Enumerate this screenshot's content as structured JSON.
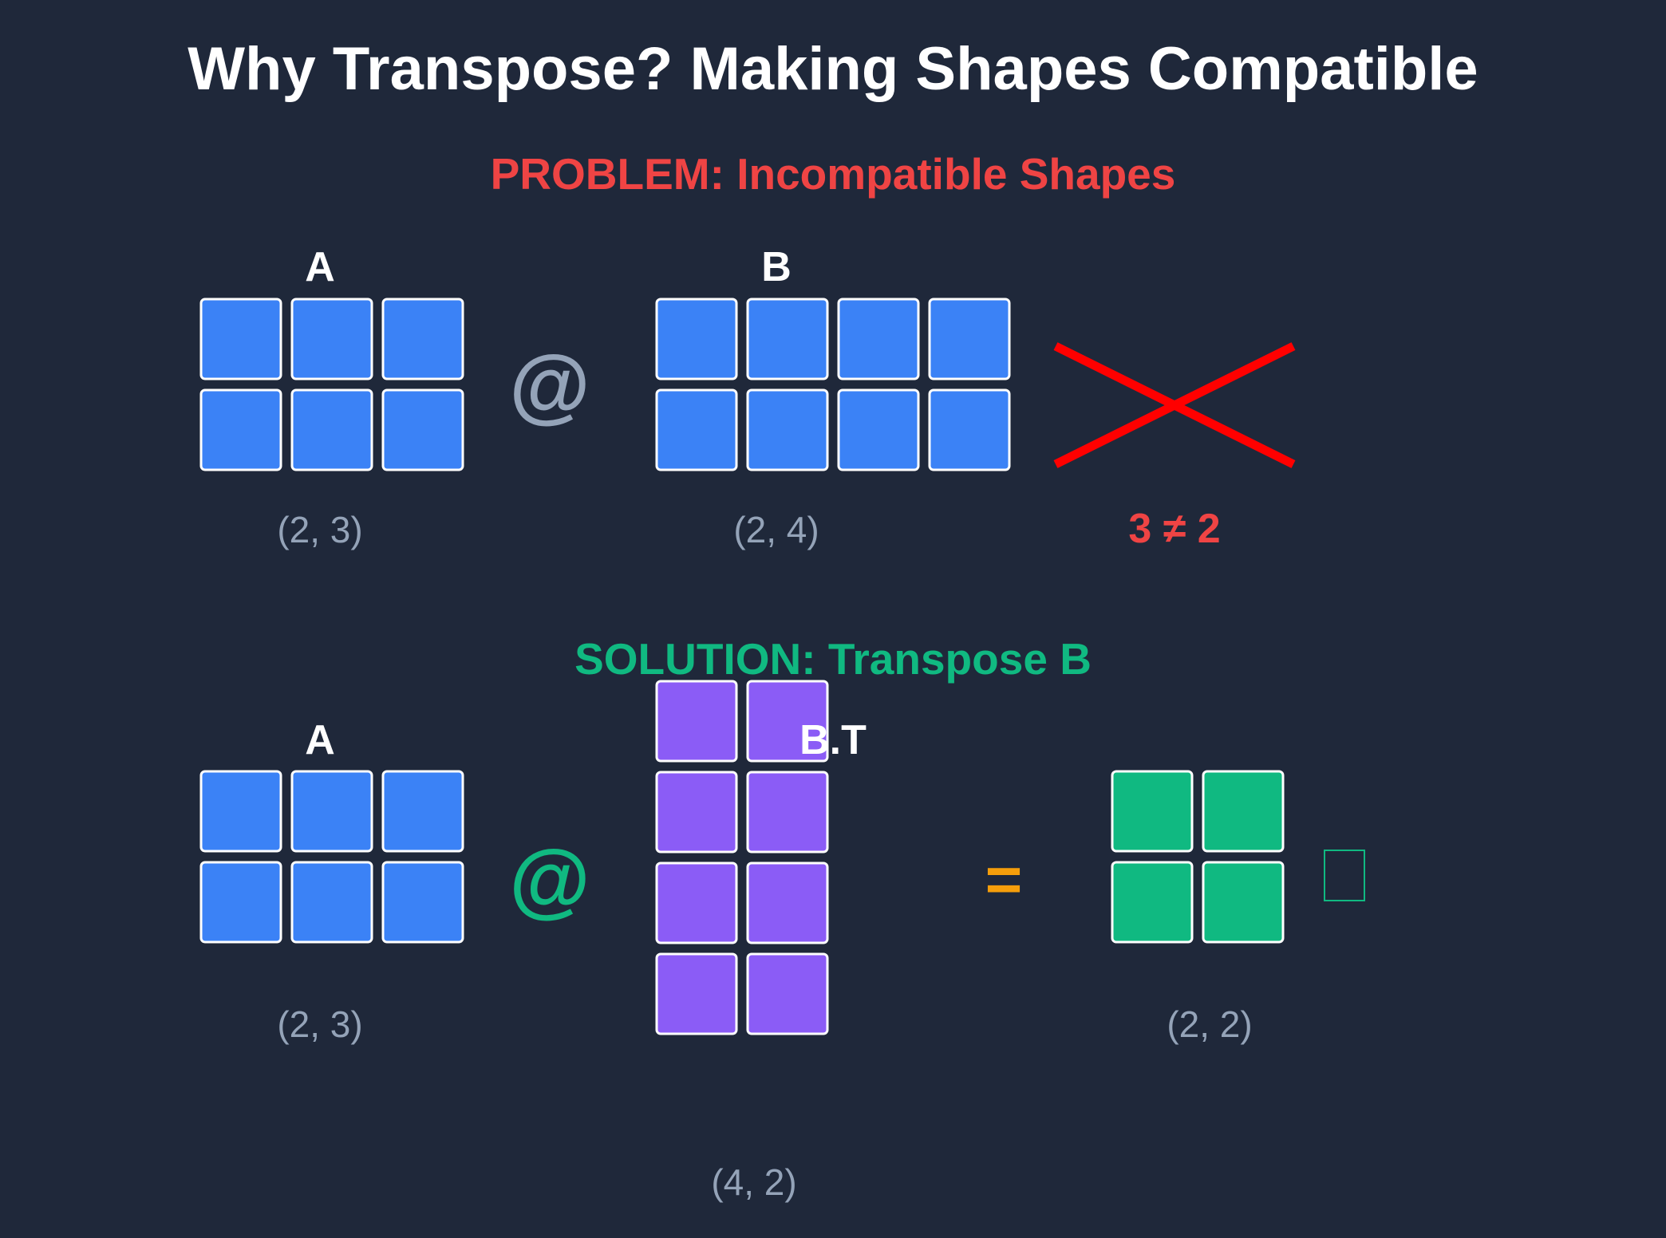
{
  "title": "Why Transpose? Making Shapes Compatible",
  "problem": {
    "heading": "PROBLEM: Incompatible Shapes",
    "matrix_a": {
      "label": "A",
      "rows": 2,
      "cols": 3,
      "shape": "(2, 3)"
    },
    "operator": "@",
    "matrix_b": {
      "label": "B",
      "rows": 2,
      "cols": 4,
      "shape": "(2, 4)"
    },
    "mismatch": "3 ≠ 2"
  },
  "solution": {
    "heading": "SOLUTION: Transpose B",
    "matrix_a": {
      "label": "A",
      "rows": 2,
      "cols": 3,
      "shape": "(2, 3)"
    },
    "operator": "@",
    "matrix_bt": {
      "label": "B.T",
      "rows": 4,
      "cols": 2,
      "shape": "(4, 2)"
    },
    "equals": "=",
    "result": {
      "rows": 2,
      "cols": 2,
      "shape": "(2, 2)"
    }
  },
  "colors": {
    "background": "#1f283a",
    "title": "#ffffff",
    "problem": "#ef4444",
    "solution": "#10b981",
    "matrix_a": "#3b82f6",
    "matrix_bt": "#8b5cf6",
    "result": "#10b981",
    "operator_neutral": "#94a3b8",
    "equals": "#f59e0b",
    "shape_text": "#94a3b8",
    "cross": "#ff0000",
    "cell_border": "#ffffff"
  }
}
